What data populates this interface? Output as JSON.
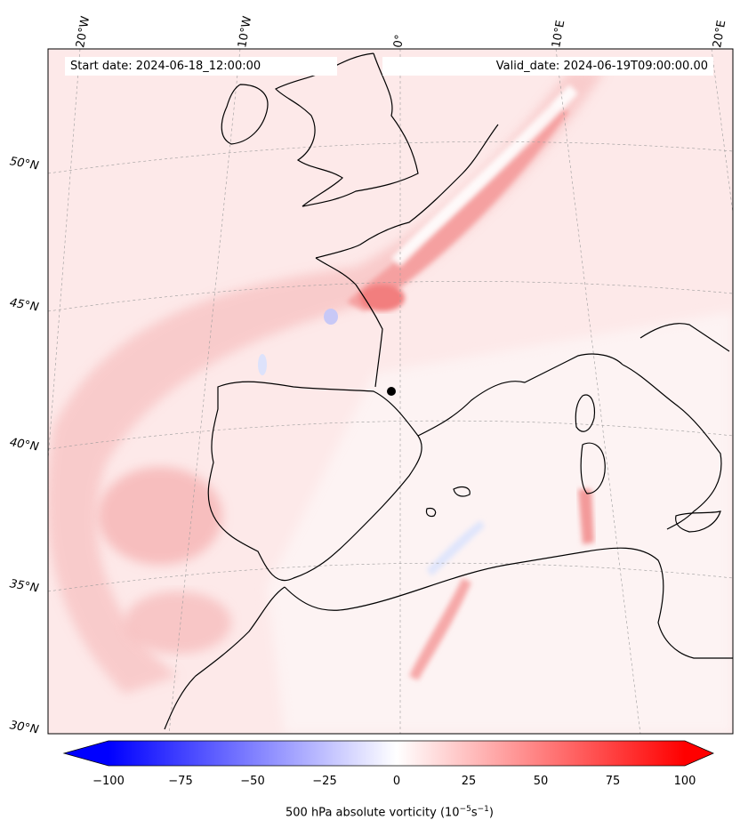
{
  "map": {
    "start_date_text": "Start date: 2024-06-18_12:00:00",
    "valid_date_text": "Valid_date: 2024-06-19T09:00:00.00",
    "lon_labels": [
      "20°W",
      "10°W",
      "0°",
      "10°E",
      "20°E"
    ],
    "lat_labels": [
      "50°N",
      "45°N",
      "40°N",
      "35°N",
      "30°N"
    ],
    "field": "500 hPa absolute vorticity",
    "colormap": "bwr",
    "coastline_color": "#000000"
  },
  "colorbar": {
    "label_main": "500 hPa absolute vorticity (10",
    "label_exp1": "−5",
    "label_mid": "s",
    "label_exp2": "−1",
    "label_end": ")",
    "ticks": [
      "−100",
      "−75",
      "−50",
      "−25",
      "0",
      "25",
      "50",
      "75",
      "100"
    ],
    "min": -100,
    "max": 100,
    "colors": [
      "#0000ff",
      "#ffffff",
      "#ff0000"
    ]
  }
}
